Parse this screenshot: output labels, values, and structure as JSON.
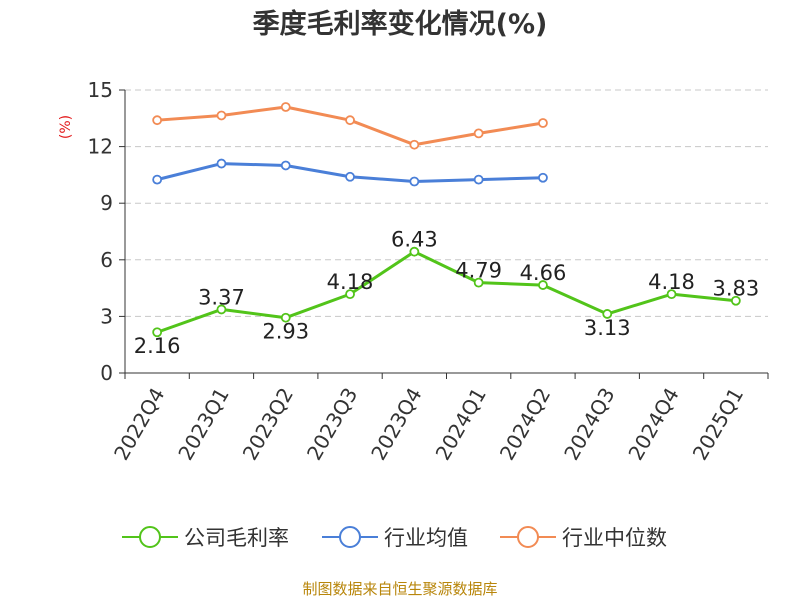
{
  "chart_data": {
    "type": "line",
    "title": "季度毛利率变化情况(%)",
    "ylabel": "(%)",
    "xlabel": "",
    "ylim": [
      0,
      15
    ],
    "yticks": [
      0,
      3,
      6,
      9,
      12,
      15
    ],
    "grid": true,
    "legend_position": "bottom",
    "categories": [
      "2022Q4",
      "2023Q1",
      "2023Q2",
      "2023Q3",
      "2023Q4",
      "2024Q1",
      "2024Q2",
      "2024Q3",
      "2024Q4",
      "2025Q1"
    ],
    "series": [
      {
        "name": "公司毛利率",
        "color": "#52c41a",
        "values": [
          2.16,
          3.37,
          2.93,
          4.18,
          6.43,
          4.79,
          4.66,
          3.13,
          4.18,
          3.83
        ],
        "labels": [
          "2.16",
          "3.37",
          "2.93",
          "4.18",
          "6.43",
          "4.79",
          "4.66",
          "3.13",
          "4.18",
          "3.83"
        ]
      },
      {
        "name": "行业均值",
        "color": "#4a7fd8",
        "values": [
          10.25,
          11.1,
          11.0,
          10.4,
          10.15,
          10.25,
          10.35,
          null,
          null,
          null
        ]
      },
      {
        "name": "行业中位数",
        "color": "#f28b54",
        "values": [
          13.4,
          13.65,
          14.1,
          13.4,
          12.1,
          12.7,
          13.25,
          null,
          null,
          null
        ]
      }
    ],
    "source": "制图数据来自恒生聚源数据库"
  }
}
